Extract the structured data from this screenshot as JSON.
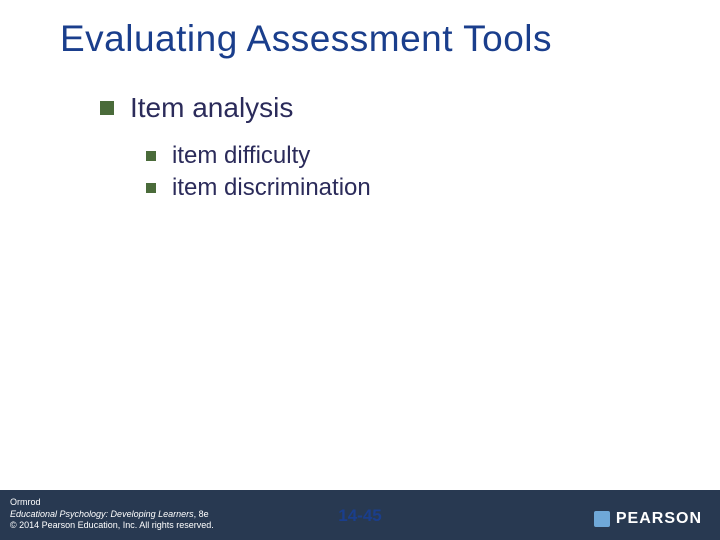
{
  "title": {
    "text": "Evaluating Assessment Tools",
    "color": "#1a3e8c",
    "fontsize": 37
  },
  "content": {
    "level1": {
      "text": "Item analysis",
      "color": "#2b2b5a",
      "bullet_color": "#4a6b3a",
      "fontsize": 28
    },
    "level2": [
      {
        "text": "item difficulty"
      },
      {
        "text": "item discrimination"
      }
    ],
    "level2_color": "#2b2b5a",
    "level2_bullet_color": "#4a6b3a",
    "level2_fontsize": 24
  },
  "footer": {
    "bg_color": "#283951",
    "author": "Ormrod",
    "book": "Educational Psychology: Developing Learners",
    "edition": ", 8e",
    "copyright": "© 2014 Pearson Education, Inc. All rights reserved.",
    "page_number": "14-45",
    "page_number_color": "#1a3e8c",
    "brand": "PEARSON",
    "brand_mark_bg": "#6fa8d8"
  },
  "background_color": "#ffffff"
}
